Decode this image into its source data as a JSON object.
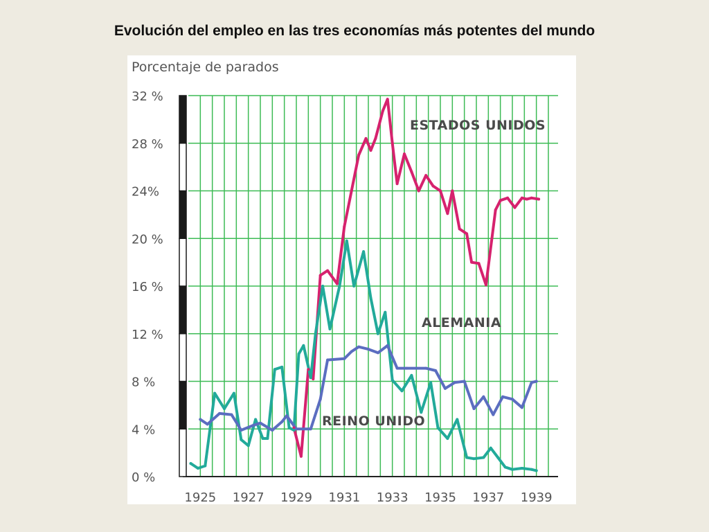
{
  "title": "Evolución del empleo en las tres economías más potentes del mundo",
  "chart_data": {
    "type": "line",
    "ylabel": "Porcentaje de parados",
    "xlabel": "",
    "xlim": [
      1924.5,
      1939.5
    ],
    "ylim": [
      0,
      32
    ],
    "y_ticks": [
      "0 %",
      "4 %",
      "8 %",
      "12 %",
      "16 %",
      "20 %",
      "24%",
      "28 %",
      "32 %"
    ],
    "x_ticks": [
      1925,
      1927,
      1929,
      1931,
      1933,
      1935,
      1937,
      1939
    ],
    "x_tick_labels": [
      "1925",
      "1927",
      "1929",
      "1931",
      "1933",
      "1935",
      "1937",
      "1939"
    ],
    "grid": true,
    "series": [
      {
        "name": "ESTADOS UNIDOS",
        "color": "#d6226e",
        "x": [
          1928.9,
          1929.2,
          1929.5,
          1929.7,
          1930.0,
          1930.3,
          1930.7,
          1931.0,
          1931.3,
          1931.6,
          1931.9,
          1932.1,
          1932.3,
          1932.6,
          1932.8,
          1933.0,
          1933.2,
          1933.5,
          1933.8,
          1934.1,
          1934.4,
          1934.7,
          1935.0,
          1935.3,
          1935.5,
          1935.8,
          1936.1,
          1936.3,
          1936.6,
          1936.9,
          1937.3,
          1937.5,
          1937.8,
          1938.1,
          1938.4,
          1938.6,
          1938.8,
          1939.1
        ],
        "values": [
          4.1,
          1.7,
          9.0,
          8.2,
          16.9,
          17.3,
          16.2,
          21.0,
          24.0,
          27.0,
          28.4,
          27.4,
          28.4,
          30.7,
          31.7,
          28.0,
          24.6,
          27.1,
          25.6,
          24.0,
          25.3,
          24.4,
          24.0,
          22.1,
          24.0,
          20.8,
          20.4,
          18.0,
          17.9,
          16.1,
          22.4,
          23.2,
          23.4,
          22.6,
          23.4,
          23.3,
          23.4,
          23.3
        ]
      },
      {
        "name": "ALEMANIA",
        "color": "#22aa9a",
        "x": [
          1924.6,
          1924.9,
          1925.2,
          1925.6,
          1926.0,
          1926.4,
          1926.7,
          1927.0,
          1927.3,
          1927.6,
          1927.8,
          1928.1,
          1928.4,
          1928.7,
          1928.9,
          1929.1,
          1929.3,
          1929.6,
          1929.8,
          1930.1,
          1930.4,
          1930.8,
          1931.1,
          1931.4,
          1931.8,
          1932.1,
          1932.4,
          1932.7,
          1933.0,
          1933.4,
          1933.8,
          1934.2,
          1934.6,
          1934.9,
          1935.3,
          1935.7,
          1936.1,
          1936.4,
          1936.8,
          1937.1,
          1937.4,
          1937.7,
          1938.0,
          1938.4,
          1938.8,
          1939.0
        ],
        "values": [
          1.1,
          0.7,
          0.9,
          7.0,
          5.7,
          7.0,
          3.1,
          2.6,
          4.8,
          3.2,
          3.2,
          9.0,
          9.2,
          4.1,
          3.9,
          10.3,
          11.0,
          8.3,
          12.0,
          16.0,
          12.4,
          16.0,
          19.8,
          16.0,
          18.9,
          15.0,
          12.0,
          13.8,
          8.1,
          7.2,
          8.5,
          5.4,
          7.9,
          4.1,
          3.2,
          4.8,
          1.6,
          1.5,
          1.6,
          2.4,
          1.6,
          0.8,
          0.6,
          0.7,
          0.6,
          0.5
        ]
      },
      {
        "name": "REINO UNIDO",
        "color": "#5b6dc0",
        "x": [
          1925.0,
          1925.3,
          1925.8,
          1926.3,
          1926.7,
          1927.2,
          1927.5,
          1928.0,
          1928.4,
          1928.6,
          1929.0,
          1929.6,
          1930.0,
          1930.3,
          1931.0,
          1931.3,
          1931.6,
          1932.0,
          1932.4,
          1932.8,
          1933.2,
          1933.6,
          1934.0,
          1934.4,
          1934.8,
          1935.2,
          1935.6,
          1936.0,
          1936.4,
          1936.8,
          1937.2,
          1937.6,
          1938.0,
          1938.4,
          1938.8,
          1939.0
        ],
        "values": [
          4.8,
          4.4,
          5.3,
          5.2,
          3.9,
          4.3,
          4.5,
          3.9,
          4.6,
          5.1,
          4.0,
          4.0,
          6.5,
          9.8,
          9.9,
          10.5,
          10.9,
          10.7,
          10.4,
          11.0,
          9.1,
          9.1,
          9.1,
          9.1,
          8.9,
          7.4,
          7.9,
          8.0,
          5.7,
          6.7,
          5.2,
          6.7,
          6.5,
          5.8,
          7.9,
          8.0
        ]
      }
    ],
    "annotations": [
      {
        "text": "ESTADOS UNIDOS",
        "series": 0
      },
      {
        "text": "ALEMANIA",
        "series": 1
      },
      {
        "text": "REINO UNIDO",
        "series": 2
      }
    ]
  }
}
